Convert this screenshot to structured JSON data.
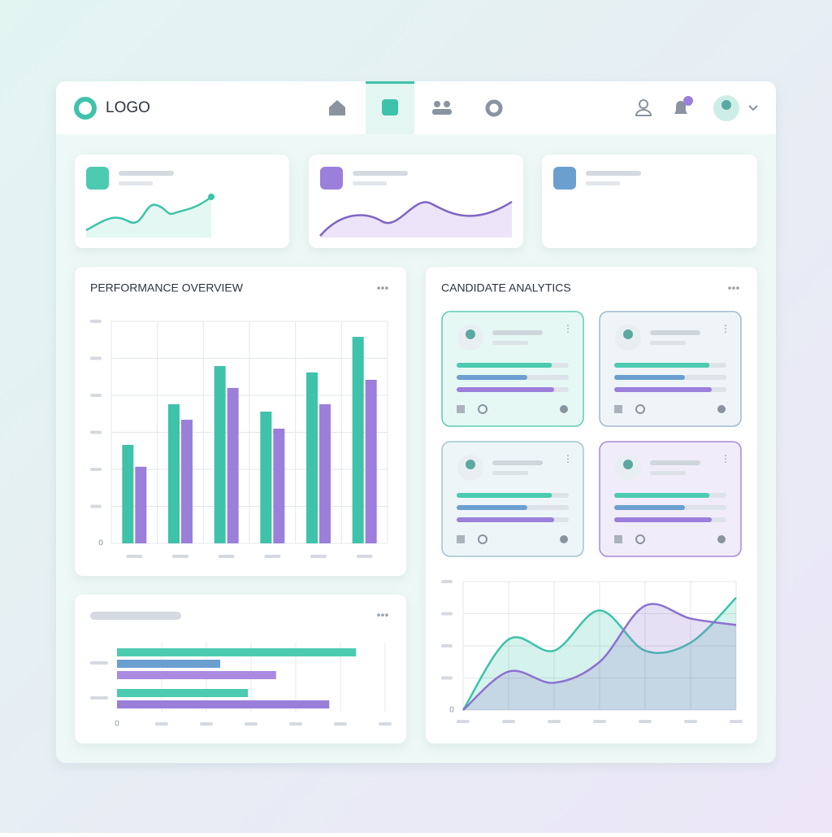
{
  "header": {
    "logo": "LOGO"
  },
  "performance_overview": {
    "title": "PERFORMANCE OVERVIEW",
    "chart": {
      "type": "bar",
      "categories": [
        null,
        null,
        null,
        null,
        null,
        null
      ],
      "series": [
        {
          "color": "#3fc2aa",
          "values": [
            2.66,
            3.76,
            4.79,
            3.56,
            4.62,
            5.58
          ]
        },
        {
          "color": "#9b7fda",
          "values": [
            2.07,
            3.34,
            4.2,
            3.1,
            3.76,
            4.42
          ]
        }
      ],
      "ylim": [
        0,
        6
      ],
      "yticks": [
        0
      ],
      "grid": true
    }
  },
  "bar_panel": {
    "chart": {
      "type": "barh",
      "values": [
        5.35,
        2.31,
        3.56,
        2.93,
        4.75
      ],
      "colors": [
        "#4ccbb0",
        "#6a9fd0",
        "#a98ae0",
        "#4ccbb0",
        "#9a7fda"
      ],
      "xlim": [
        0,
        6
      ],
      "xticks": [
        0
      ],
      "grid": true
    }
  },
  "candidate_analytics": {
    "title": "CANDIDATE ANALYTICS",
    "chart": {
      "type": "area",
      "x": [
        0,
        1,
        2,
        3,
        4,
        5,
        6
      ],
      "series": [
        {
          "color": "#3fc2aa",
          "values": [
            0,
            2.2,
            1.85,
            3.1,
            1.85,
            2.1,
            3.5
          ]
        },
        {
          "color": "#8b72cf",
          "values": [
            0,
            1.2,
            0.85,
            1.5,
            3.25,
            2.85,
            2.65
          ]
        }
      ],
      "xlim": [
        0,
        6
      ],
      "ylim": [
        0,
        4
      ],
      "yticks": [
        0
      ],
      "grid": true
    }
  }
}
